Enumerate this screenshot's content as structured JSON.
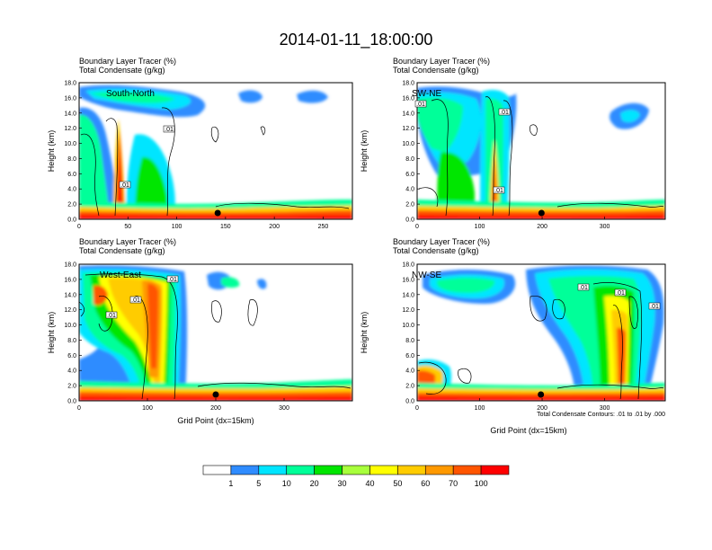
{
  "figure_title": "2014-01-11_18:00:00",
  "footer_note": "Total Condensate Contours: .01 to .01 by .000",
  "colorbar": {
    "labels": [
      "1",
      "5",
      "10",
      "20",
      "30",
      "40",
      "50",
      "60",
      "70",
      "100"
    ],
    "colors": [
      "#ffffff",
      "#2f8cff",
      "#00e5ff",
      "#00ff99",
      "#00e600",
      "#a8ff3c",
      "#ffff00",
      "#ffcc00",
      "#ff9900",
      "#ff5500",
      "#ff0000"
    ]
  },
  "chart_data": [
    {
      "type": "heatmap",
      "panel": "top-left",
      "title_line1": "Boundary Layer Tracer   (%)",
      "title_line2": "Total Condensate   (g/kg)",
      "inset_label": "South-North",
      "ylabel": "Height (km)",
      "xlabel": "",
      "xlim": [
        0,
        280
      ],
      "ylim": [
        0,
        18
      ],
      "xticks": [
        "0",
        "50",
        "100",
        "150",
        "200",
        "250"
      ],
      "xtick_values": [
        0,
        50,
        100,
        150,
        200,
        250
      ],
      "yticks": [
        "0.0",
        "2.0",
        "4.0",
        "6.0",
        "8.0",
        "10.0",
        "12.0",
        "14.0",
        "16.0",
        "18.0"
      ],
      "contour_labels": [
        ".01",
        ".01"
      ],
      "marker_x": 142
    },
    {
      "type": "heatmap",
      "panel": "top-right",
      "title_line1": "Boundary Layer Tracer   (%)",
      "title_line2": "Total Condensate   (g/kg)",
      "inset_label": "SW-NE",
      "ylabel": "Height (km)",
      "xlabel": "",
      "xlim": [
        0,
        397
      ],
      "ylim": [
        0,
        18
      ],
      "xticks": [
        "0",
        "100",
        "200",
        "300"
      ],
      "xtick_values": [
        0,
        100,
        200,
        300
      ],
      "yticks": [
        "0.0",
        "2.0",
        "4.0",
        "6.0",
        "8.0",
        "10.0",
        "12.0",
        "14.0",
        "16.0",
        "18.0"
      ],
      "contour_labels": [
        ".01",
        ".01",
        ".01"
      ],
      "marker_x": 199
    },
    {
      "type": "heatmap",
      "panel": "bottom-left",
      "title_line1": "Boundary Layer Tracer   (%)",
      "title_line2": "Total Condensate   (g/kg)",
      "inset_label": "West-East",
      "ylabel": "Height (km)",
      "xlabel": "Grid Point (dx=15km)",
      "xlim": [
        0,
        400
      ],
      "ylim": [
        0,
        18
      ],
      "xticks": [
        "0",
        "100",
        "200",
        "300"
      ],
      "xtick_values": [
        0,
        100,
        200,
        300
      ],
      "yticks": [
        "0.0",
        "2.0",
        "4.0",
        "6.0",
        "8.0",
        "10.0",
        "12.0",
        "14.0",
        "16.0",
        "18.0"
      ],
      "contour_labels": [
        ".01",
        ".01",
        ".01"
      ],
      "marker_x": 200
    },
    {
      "type": "heatmap",
      "panel": "bottom-right",
      "title_line1": "Boundary Layer Tracer   (%)",
      "title_line2": "Total Condensate   (g/kg)",
      "inset_label": "NW-SE",
      "ylabel": "Height (km)",
      "xlabel": "Grid Point (dx=15km)",
      "xlim": [
        0,
        397
      ],
      "ylim": [
        0,
        18
      ],
      "xticks": [
        "0",
        "100",
        "200",
        "300"
      ],
      "xtick_values": [
        0,
        100,
        200,
        300
      ],
      "yticks": [
        "0.0",
        "2.0",
        "4.0",
        "6.0",
        "8.0",
        "10.0",
        "12.0",
        "14.0",
        "16.0",
        "18.0"
      ],
      "contour_labels": [
        ".01",
        ".01",
        ".01"
      ],
      "marker_x": 198
    }
  ]
}
